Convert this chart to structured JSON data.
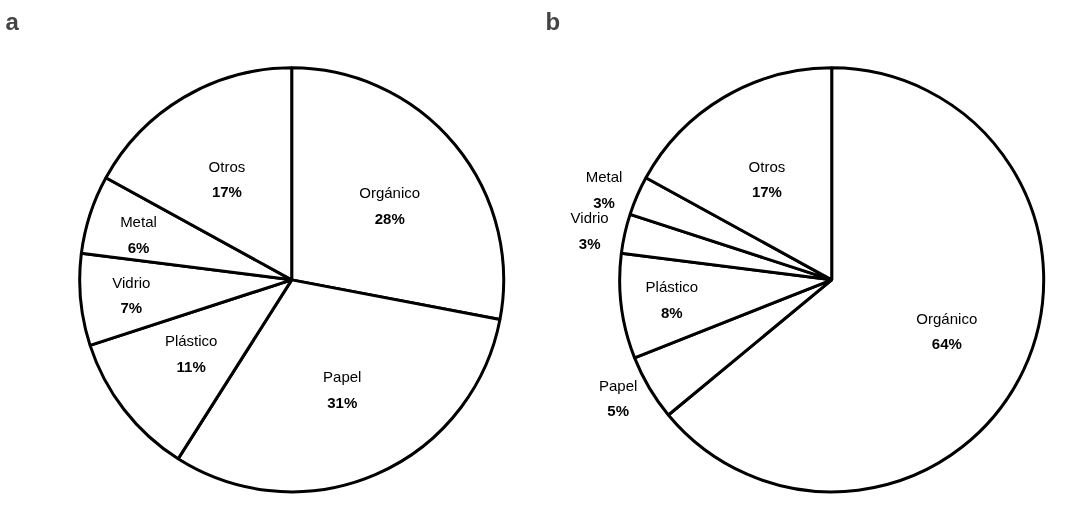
{
  "chart_data": [
    {
      "type": "pie",
      "title": "a",
      "categories": [
        "Orgánico",
        "Papel",
        "Plástico",
        "Vidrio",
        "Metal",
        "Otros"
      ],
      "values": [
        28,
        31,
        11,
        7,
        6,
        17
      ],
      "value_labels": [
        "28%",
        "31%",
        "11%",
        "7%",
        "6%",
        "17%"
      ],
      "colors": [
        "#ffffff",
        "#ffffff",
        "#ffffff",
        "#ffffff",
        "#ffffff",
        "#ffffff"
      ]
    },
    {
      "type": "pie",
      "title": "b",
      "categories": [
        "Orgánico",
        "Papel",
        "Plástico",
        "Vidrio",
        "Metal",
        "Otros"
      ],
      "values": [
        64,
        5,
        8,
        3,
        3,
        17
      ],
      "value_labels": [
        "64%",
        "5%",
        "8%",
        "3%",
        "3%",
        "17%"
      ],
      "colors": [
        "#ffffff",
        "#ffffff",
        "#ffffff",
        "#ffffff",
        "#ffffff",
        "#ffffff"
      ]
    }
  ]
}
